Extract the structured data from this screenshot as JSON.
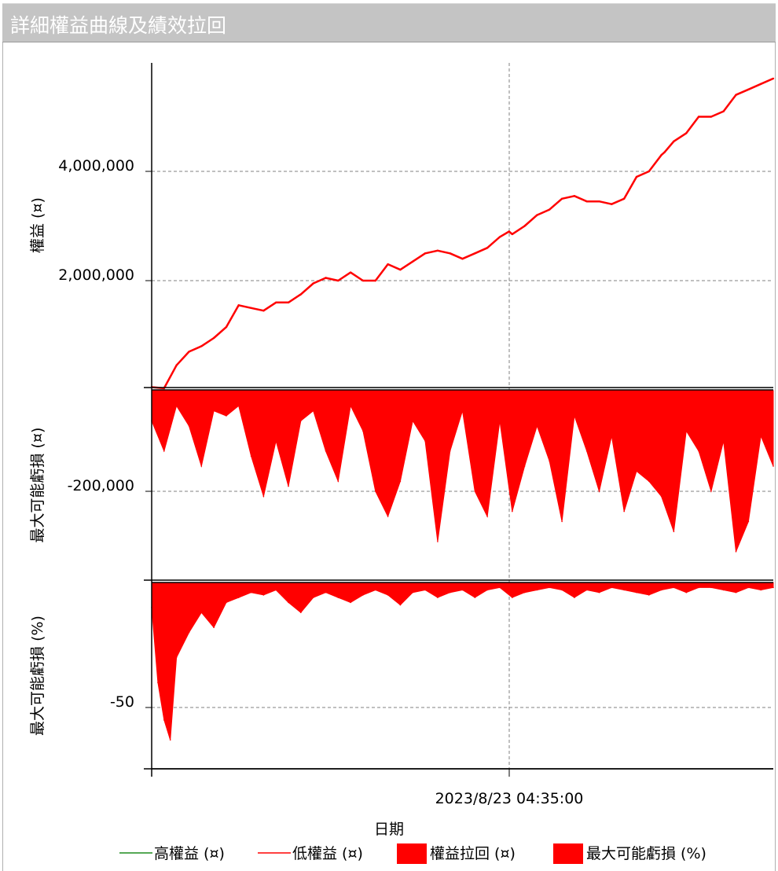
{
  "window": {
    "title": "詳細權益曲線及績效拉回"
  },
  "chart_data": {
    "type": "line",
    "xlabel": "日期",
    "x_ticks": [
      "2023/8/23 04:35:00"
    ],
    "legend": {
      "placement": "bottom",
      "entries": [
        {
          "label": "高權益 (¤)",
          "kind": "line",
          "color": "#1e8c1e"
        },
        {
          "label": "低權益 (¤)",
          "kind": "line",
          "color": "#ff0000"
        },
        {
          "label": "權益拉回 (¤)",
          "kind": "area",
          "color": "#ff0000"
        },
        {
          "label": "最大可能虧損 (%)",
          "kind": "area",
          "color": "#ff0000"
        }
      ]
    },
    "panels": [
      {
        "name": "equity",
        "ylabel": "權益 (¤)",
        "ylim": [
          0,
          5800000
        ],
        "y_ticks": [
          {
            "value": 2000000,
            "label": "2,000,000"
          },
          {
            "value": 4000000,
            "label": "4,000,000"
          }
        ],
        "grid": true,
        "color": "#ff0000",
        "x": [
          0,
          0.02,
          0.04,
          0.06,
          0.08,
          0.1,
          0.12,
          0.14,
          0.16,
          0.18,
          0.2,
          0.22,
          0.24,
          0.26,
          0.28,
          0.3,
          0.32,
          0.34,
          0.36,
          0.38,
          0.4,
          0.42,
          0.44,
          0.46,
          0.48,
          0.5,
          0.52,
          0.54,
          0.56,
          0.575,
          0.58,
          0.6,
          0.62,
          0.64,
          0.66,
          0.68,
          0.7,
          0.72,
          0.74,
          0.76,
          0.78,
          0.8,
          0.82,
          0.825,
          0.84,
          0.86,
          0.88,
          0.9,
          0.92,
          0.94,
          0.96,
          0.98,
          1.0
        ],
        "values": [
          50000,
          30000,
          450000,
          700000,
          800000,
          950000,
          1150000,
          1550000,
          1500000,
          1450000,
          1600000,
          1600000,
          1750000,
          1950000,
          2050000,
          2000000,
          2150000,
          2000000,
          2000000,
          2300000,
          2200000,
          2350000,
          2500000,
          2550000,
          2500000,
          2400000,
          2500000,
          2600000,
          2800000,
          2900000,
          2850000,
          3000000,
          3200000,
          3300000,
          3500000,
          3550000,
          3450000,
          3450000,
          3400000,
          3500000,
          3900000,
          4000000,
          4300000,
          4350000,
          4550000,
          4700000,
          5000000,
          5000000,
          5100000,
          5400000,
          5500000,
          5600000,
          5700000
        ]
      },
      {
        "name": "drawdown",
        "ylabel": "最大可能虧損 (¤)",
        "ylim": [
          -340000,
          0
        ],
        "y_ticks": [
          {
            "value": -200000,
            "label": "-200,000"
          }
        ],
        "grid": true,
        "color": "#ff0000",
        "x": [
          0,
          0.02,
          0.04,
          0.06,
          0.08,
          0.1,
          0.12,
          0.14,
          0.16,
          0.18,
          0.2,
          0.22,
          0.24,
          0.26,
          0.28,
          0.3,
          0.32,
          0.34,
          0.36,
          0.38,
          0.4,
          0.42,
          0.44,
          0.46,
          0.48,
          0.5,
          0.52,
          0.54,
          0.56,
          0.58,
          0.6,
          0.62,
          0.64,
          0.66,
          0.68,
          0.7,
          0.72,
          0.74,
          0.76,
          0.78,
          0.8,
          0.82,
          0.84,
          0.86,
          0.88,
          0.9,
          0.92,
          0.94,
          0.96,
          0.98,
          1.0
        ],
        "values": [
          -60000,
          -120000,
          -30000,
          -70000,
          -150000,
          -40000,
          -50000,
          -30000,
          -130000,
          -210000,
          -100000,
          -190000,
          -60000,
          -40000,
          -120000,
          -180000,
          -30000,
          -80000,
          -200000,
          -250000,
          -180000,
          -60000,
          -100000,
          -300000,
          -120000,
          -40000,
          -200000,
          -250000,
          -60000,
          -240000,
          -150000,
          -70000,
          -140000,
          -260000,
          -50000,
          -120000,
          -200000,
          -90000,
          -240000,
          -160000,
          -180000,
          -210000,
          -280000,
          -80000,
          -120000,
          -200000,
          -100000,
          -320000,
          -260000,
          -90000,
          -150000
        ]
      },
      {
        "name": "drawdown_pct",
        "ylabel": "最大可能虧損 (%)",
        "ylim": [
          -65,
          0
        ],
        "y_ticks": [
          {
            "value": -50,
            "label": "-50"
          }
        ],
        "grid": true,
        "color": "#ff0000",
        "x": [
          0,
          0.01,
          0.02,
          0.03,
          0.04,
          0.06,
          0.08,
          0.1,
          0.12,
          0.14,
          0.16,
          0.18,
          0.2,
          0.22,
          0.24,
          0.26,
          0.28,
          0.3,
          0.32,
          0.34,
          0.36,
          0.38,
          0.4,
          0.42,
          0.44,
          0.46,
          0.48,
          0.5,
          0.52,
          0.54,
          0.56,
          0.58,
          0.6,
          0.62,
          0.64,
          0.66,
          0.68,
          0.7,
          0.72,
          0.74,
          0.76,
          0.78,
          0.8,
          0.82,
          0.84,
          0.86,
          0.88,
          0.9,
          0.92,
          0.94,
          0.96,
          0.98,
          1.0
        ],
        "values": [
          -10,
          -40,
          -55,
          -63,
          -30,
          -20,
          -12,
          -18,
          -8,
          -6,
          -4,
          -5,
          -3,
          -8,
          -12,
          -6,
          -4,
          -6,
          -8,
          -5,
          -3,
          -5,
          -9,
          -4,
          -3,
          -6,
          -4,
          -3,
          -6,
          -3,
          -2,
          -6,
          -4,
          -3,
          -2,
          -3,
          -6,
          -3,
          -4,
          -2,
          -3,
          -4,
          -5,
          -3,
          -2,
          -4,
          -2,
          -2,
          -3,
          -4,
          -2,
          -3,
          -2
        ]
      }
    ]
  }
}
